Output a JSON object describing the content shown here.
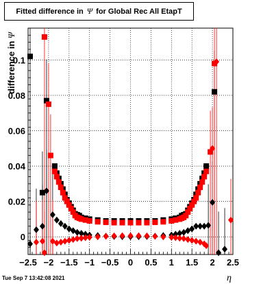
{
  "header": {
    "title_prefix": "Fitted difference in",
    "title_symbol": "Ψ",
    "title_suffix": "for Global Rec All EtapT"
  },
  "footer": {
    "timestamp": "Tue Sep  7 13:42:08 2021"
  },
  "chart_data": {
    "type": "scatter",
    "xlabel": "η",
    "ylabel_prefix": "difference in",
    "ylabel_symbol": "Ψ",
    "xlim": [
      -2.5,
      2.5
    ],
    "ylim": [
      -0.01,
      0.118
    ],
    "grid": true,
    "x_ticks": [
      -2.5,
      -2,
      -1.5,
      -1,
      -0.5,
      0,
      0.5,
      1,
      1.5,
      2,
      2.5
    ],
    "x_tick_labels": [
      "−2.5",
      "−2",
      "−1.5",
      "−1",
      "−0.5",
      "0",
      "0.5",
      "1",
      "1.5",
      "2",
      "2.5"
    ],
    "y_ticks": [
      0,
      0.02,
      0.04,
      0.06,
      0.08,
      0.1
    ],
    "y_tick_labels": [
      "0",
      "0.02",
      "0.04",
      "0.06",
      "0.08",
      "0.1"
    ],
    "series": [
      {
        "marker": "square",
        "color": "#000000",
        "points": [
          [
            -2.45,
            0.102
          ],
          [
            -2.15,
            0.025
          ],
          [
            -2.05,
            0.077
          ],
          [
            -1.85,
            0.04
          ],
          [
            -1.8,
            0.036
          ],
          [
            -1.75,
            0.033
          ],
          [
            -1.7,
            0.03
          ],
          [
            -1.65,
            0.027
          ],
          [
            -1.6,
            0.024
          ],
          [
            -1.55,
            0.021
          ],
          [
            -1.5,
            0.019
          ],
          [
            -1.45,
            0.017
          ],
          [
            -1.4,
            0.015
          ],
          [
            -1.35,
            0.013
          ],
          [
            -1.3,
            0.0125
          ],
          [
            -1.25,
            0.012
          ],
          [
            -1.2,
            0.011
          ],
          [
            -1.1,
            0.0105
          ],
          [
            -1.0,
            0.01
          ],
          [
            -0.8,
            0.0095
          ],
          [
            -0.6,
            0.009
          ],
          [
            -0.4,
            0.009
          ],
          [
            -0.2,
            0.009
          ],
          [
            0.0,
            0.009
          ],
          [
            0.2,
            0.009
          ],
          [
            0.4,
            0.009
          ],
          [
            0.6,
            0.009
          ],
          [
            0.8,
            0.0095
          ],
          [
            1.0,
            0.01
          ],
          [
            1.1,
            0.0105
          ],
          [
            1.2,
            0.011
          ],
          [
            1.25,
            0.012
          ],
          [
            1.3,
            0.0125
          ],
          [
            1.35,
            0.013
          ],
          [
            1.4,
            0.015
          ],
          [
            1.45,
            0.017
          ],
          [
            1.5,
            0.019
          ],
          [
            1.55,
            0.021
          ],
          [
            1.6,
            0.024
          ],
          [
            1.65,
            0.027
          ],
          [
            1.7,
            0.03
          ],
          [
            1.75,
            0.033
          ],
          [
            1.8,
            0.036
          ],
          [
            1.85,
            0.04
          ],
          [
            2.05,
            0.082
          ]
        ]
      },
      {
        "marker": "square",
        "color": "#ff0000",
        "points": [
          [
            -2.1,
            0.113
          ],
          [
            -2.0,
            0.075
          ],
          [
            -1.95,
            0.046
          ],
          [
            -1.85,
            0.037
          ],
          [
            -1.8,
            0.034
          ],
          [
            -1.75,
            0.031
          ],
          [
            -1.7,
            0.028
          ],
          [
            -1.65,
            0.025
          ],
          [
            -1.6,
            0.022
          ],
          [
            -1.55,
            0.02
          ],
          [
            -1.5,
            0.018
          ],
          [
            -1.45,
            0.016
          ],
          [
            -1.4,
            0.014
          ],
          [
            -1.35,
            0.012
          ],
          [
            -1.3,
            0.011
          ],
          [
            -1.25,
            0.0105
          ],
          [
            -1.2,
            0.01
          ],
          [
            -1.1,
            0.0095
          ],
          [
            -1.0,
            0.009
          ],
          [
            -0.8,
            0.0085
          ],
          [
            -0.6,
            0.0082
          ],
          [
            -0.4,
            0.008
          ],
          [
            -0.2,
            0.008
          ],
          [
            0.0,
            0.008
          ],
          [
            0.2,
            0.008
          ],
          [
            0.4,
            0.008
          ],
          [
            0.6,
            0.0082
          ],
          [
            0.8,
            0.0085
          ],
          [
            1.0,
            0.009
          ],
          [
            1.1,
            0.0095
          ],
          [
            1.2,
            0.01
          ],
          [
            1.25,
            0.0105
          ],
          [
            1.3,
            0.011
          ],
          [
            1.35,
            0.012
          ],
          [
            1.4,
            0.014
          ],
          [
            1.45,
            0.016
          ],
          [
            1.5,
            0.018
          ],
          [
            1.55,
            0.02
          ],
          [
            1.6,
            0.022
          ],
          [
            1.65,
            0.025
          ],
          [
            1.7,
            0.028
          ],
          [
            1.75,
            0.031
          ],
          [
            1.8,
            0.034
          ],
          [
            1.85,
            0.037
          ],
          [
            1.95,
            0.048
          ],
          [
            2.05,
            0.098
          ]
        ]
      },
      {
        "marker": "diamond",
        "color": "#000000",
        "points": [
          [
            -2.45,
            -0.004
          ],
          [
            -2.3,
            0.004
          ],
          [
            -2.15,
            0.006
          ],
          [
            -2.05,
            0.026
          ],
          [
            -1.9,
            0.0125
          ],
          [
            -1.8,
            0.0095
          ],
          [
            -1.7,
            0.0075
          ],
          [
            -1.6,
            0.006
          ],
          [
            -1.5,
            0.0045
          ],
          [
            -1.4,
            0.0035
          ],
          [
            -1.3,
            0.0025
          ],
          [
            -1.2,
            0.002
          ],
          [
            -1.1,
            0.0015
          ],
          [
            -1.0,
            0.001
          ],
          [
            -0.8,
            0.0007
          ],
          [
            -0.6,
            0.0004
          ],
          [
            -0.4,
            0.0002
          ],
          [
            -0.2,
            0.0001
          ],
          [
            0.0,
            0.0001
          ],
          [
            0.2,
            0.0001
          ],
          [
            0.4,
            0.0002
          ],
          [
            0.6,
            0.0004
          ],
          [
            0.8,
            0.0007
          ],
          [
            1.0,
            0.001
          ],
          [
            1.1,
            0.0015
          ],
          [
            1.2,
            0.002
          ],
          [
            1.3,
            0.0025
          ],
          [
            1.4,
            0.0035
          ],
          [
            1.5,
            0.0045
          ],
          [
            1.6,
            0.006
          ],
          [
            1.7,
            0.006
          ],
          [
            1.8,
            0.006
          ],
          [
            1.9,
            0.0065
          ],
          [
            2.0,
            0.0195
          ],
          [
            2.15,
            -0.009
          ],
          [
            2.3,
            -0.007
          ]
        ]
      },
      {
        "marker": "diamond",
        "color": "#ff0000",
        "points": [
          [
            -2.3,
            -0.003
          ],
          [
            -2.15,
            -0.0025
          ],
          [
            -2.1,
            -0.009
          ],
          [
            -1.9,
            -0.0025
          ],
          [
            -1.8,
            -0.0035
          ],
          [
            -1.7,
            -0.003
          ],
          [
            -1.6,
            -0.0025
          ],
          [
            -1.5,
            -0.002
          ],
          [
            -1.4,
            -0.0015
          ],
          [
            -1.3,
            -0.001
          ],
          [
            -1.2,
            -0.0008
          ],
          [
            -1.1,
            -0.0005
          ],
          [
            -1.0,
            -0.0003
          ],
          [
            -0.8,
            0.0
          ],
          [
            -0.6,
            0.0003
          ],
          [
            -0.4,
            0.0005
          ],
          [
            -0.2,
            0.0006
          ],
          [
            0.0,
            0.0006
          ],
          [
            0.2,
            0.0006
          ],
          [
            0.4,
            0.0005
          ],
          [
            0.6,
            0.0003
          ],
          [
            0.8,
            0.0
          ],
          [
            1.0,
            -0.0003
          ],
          [
            1.1,
            -0.0005
          ],
          [
            1.2,
            -0.0008
          ],
          [
            1.3,
            -0.001
          ],
          [
            1.4,
            -0.0015
          ],
          [
            1.5,
            -0.002
          ],
          [
            1.6,
            -0.0025
          ],
          [
            1.7,
            -0.003
          ],
          [
            1.8,
            -0.004
          ],
          [
            1.85,
            -0.005
          ],
          [
            2.0,
            0.05
          ],
          [
            2.1,
            0.099
          ],
          [
            2.45,
            0.0095
          ]
        ]
      }
    ]
  }
}
